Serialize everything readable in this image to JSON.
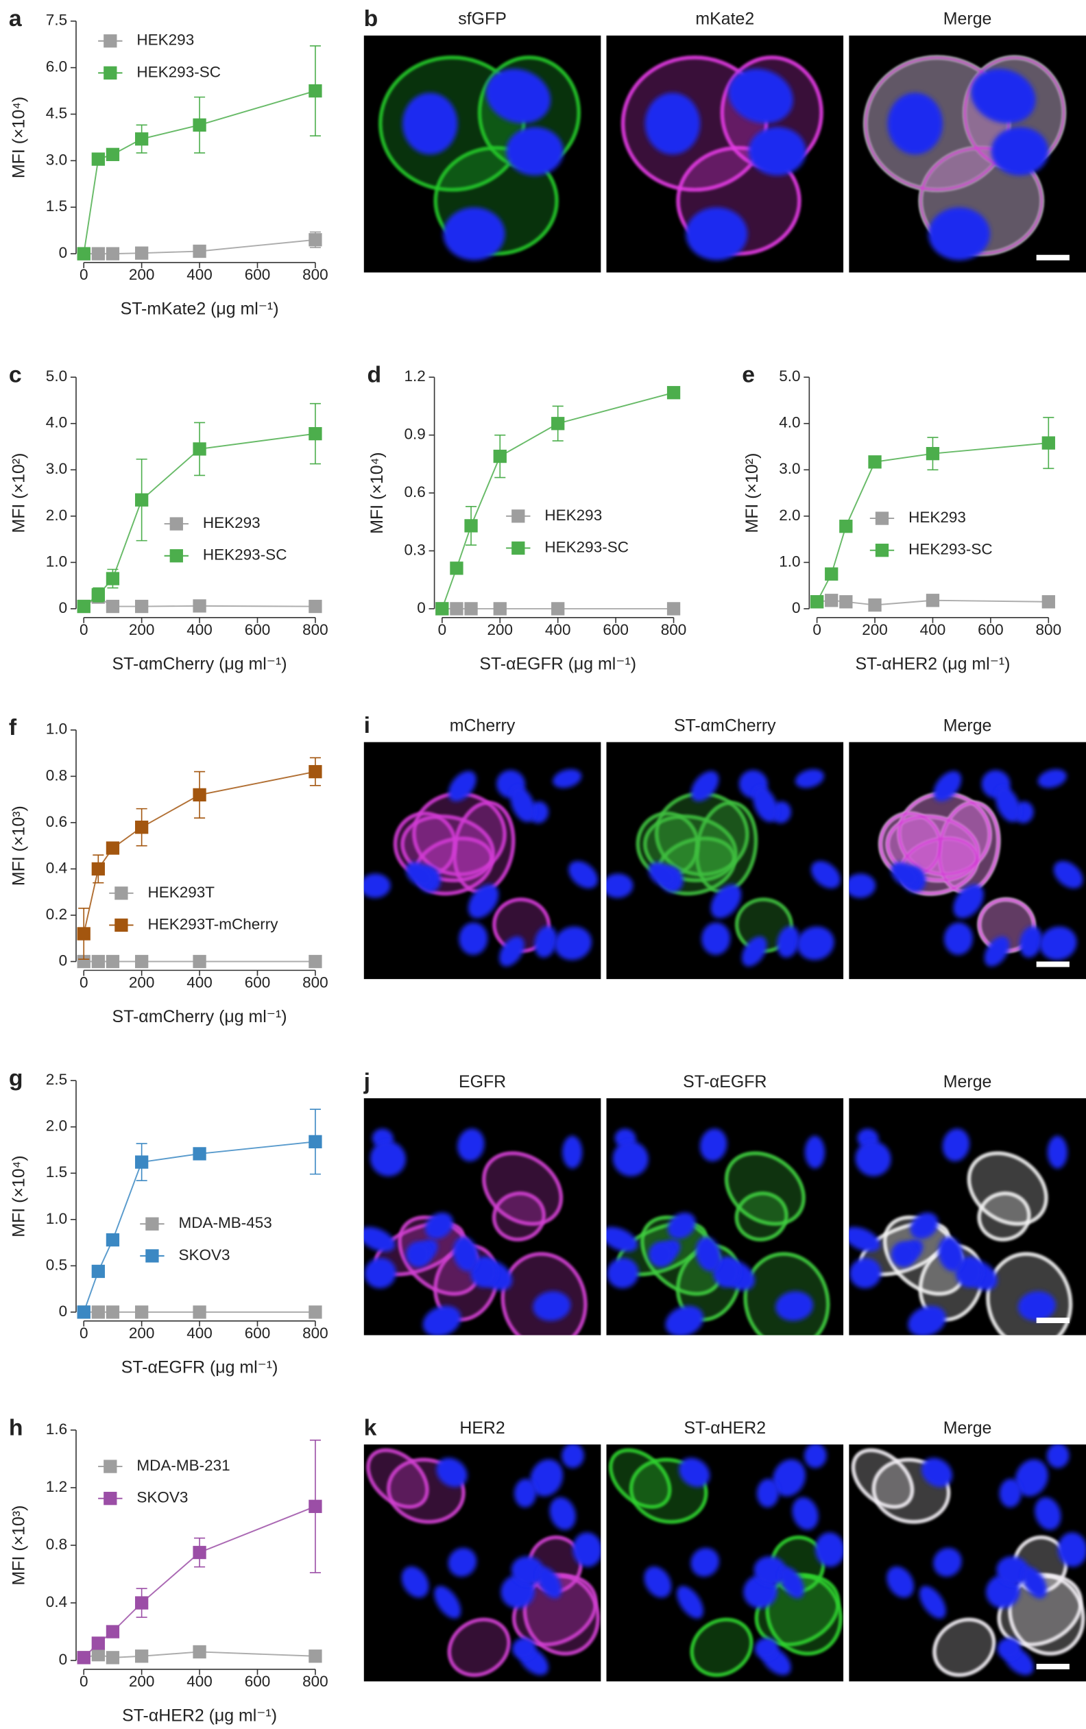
{
  "chart_data": [
    {
      "panel": "a",
      "type": "line",
      "x_label": "ST-mKate2 (μg ml⁻¹)",
      "y_label": "MFI (×10⁴)",
      "x": [
        0,
        50,
        100,
        200,
        400,
        800
      ],
      "xlim": [
        0,
        800
      ],
      "xticks": [
        0,
        200,
        400,
        600,
        800
      ],
      "ylim": [
        0,
        7.5
      ],
      "yticks": [
        0,
        1.5,
        {
          "value": 3,
          "label": "3.0"
        },
        4.5,
        {
          "value": 6,
          "label": "6.0"
        },
        7.5
      ],
      "series": [
        {
          "name": "HEK293",
          "color": "#9e9e9e",
          "values": [
            0,
            0,
            0,
            0.02,
            0.08,
            0.45
          ],
          "errors": [
            0,
            0,
            0,
            0,
            0.05,
            0.25
          ]
        },
        {
          "name": "HEK293-SC",
          "color": "#4cae4c",
          "values": [
            0,
            3.05,
            3.2,
            3.7,
            4.15,
            5.25
          ],
          "errors": [
            0,
            0.05,
            0.1,
            0.45,
            0.9,
            1.45
          ]
        }
      ]
    },
    {
      "panel": "c",
      "type": "line",
      "x_label": "ST-αmCherry (μg ml⁻¹)",
      "y_label": "MFI (×10²)",
      "x": [
        0,
        50,
        100,
        200,
        400,
        800
      ],
      "xlim": [
        0,
        800
      ],
      "xticks": [
        0,
        200,
        400,
        600,
        800
      ],
      "ylim": [
        0,
        5
      ],
      "yticks": [
        0,
        {
          "value": 1,
          "label": "1.0"
        },
        {
          "value": 2,
          "label": "2.0"
        },
        {
          "value": 3,
          "label": "3.0"
        },
        {
          "value": 4,
          "label": "4.0"
        },
        {
          "value": 5,
          "label": "5.0"
        }
      ],
      "series": [
        {
          "name": "HEK293",
          "color": "#9e9e9e",
          "values": [
            0.05,
            0.25,
            0.05,
            0.05,
            0.06,
            0.05
          ],
          "errors": [
            0.02,
            0.1,
            0.02,
            0.02,
            0.02,
            0.02
          ]
        },
        {
          "name": "HEK293-SC",
          "color": "#4cae4c",
          "values": [
            0.05,
            0.3,
            0.65,
            2.35,
            3.45,
            3.78
          ],
          "errors": [
            0.02,
            0.15,
            0.2,
            0.88,
            0.57,
            0.65
          ]
        }
      ]
    },
    {
      "panel": "d",
      "type": "line",
      "x_label": "ST-αEGFR (μg ml⁻¹)",
      "y_label": "MFI (×10⁴)",
      "x": [
        0,
        50,
        100,
        200,
        400,
        800
      ],
      "xlim": [
        0,
        800
      ],
      "xticks": [
        0,
        200,
        400,
        600,
        800
      ],
      "ylim": [
        0,
        1.2
      ],
      "yticks": [
        0,
        0.3,
        0.6,
        0.9,
        1.2
      ],
      "series": [
        {
          "name": "HEK293",
          "color": "#9e9e9e",
          "values": [
            0,
            0,
            0,
            0,
            0,
            0
          ],
          "errors": [
            0,
            0,
            0,
            0,
            0,
            0
          ]
        },
        {
          "name": "HEK293-SC",
          "color": "#4cae4c",
          "values": [
            0,
            0.21,
            0.43,
            0.79,
            0.96,
            1.12
          ],
          "errors": [
            0,
            0.02,
            0.1,
            0.11,
            0.09,
            0.02
          ]
        }
      ]
    },
    {
      "panel": "e",
      "type": "line",
      "x_label": "ST-αHER2 (μg ml⁻¹)",
      "y_label": "MFI (×10²)",
      "x": [
        0,
        50,
        100,
        200,
        400,
        800
      ],
      "xlim": [
        0,
        800
      ],
      "xticks": [
        0,
        200,
        400,
        600,
        800
      ],
      "ylim": [
        0,
        5
      ],
      "yticks": [
        0,
        {
          "value": 1,
          "label": "1.0"
        },
        {
          "value": 2,
          "label": "2.0"
        },
        {
          "value": 3,
          "label": "3.0"
        },
        {
          "value": 4,
          "label": "4.0"
        },
        {
          "value": 5,
          "label": "5.0"
        }
      ],
      "series": [
        {
          "name": "HEK293",
          "color": "#9e9e9e",
          "values": [
            0.15,
            0.18,
            0.15,
            0.08,
            0.18,
            0.15
          ],
          "errors": [
            0.02,
            0.02,
            0.02,
            0.02,
            0.02,
            0.02
          ]
        },
        {
          "name": "HEK293-SC",
          "color": "#4cae4c",
          "values": [
            0.15,
            0.75,
            1.78,
            3.17,
            3.35,
            3.58
          ],
          "errors": [
            0,
            0.05,
            0.05,
            0.05,
            0.35,
            0.55
          ]
        }
      ]
    },
    {
      "panel": "f",
      "type": "line",
      "x_label": "ST-αmCherry (μg ml⁻¹)",
      "y_label": "MFI (×10³)",
      "x": [
        0,
        50,
        100,
        200,
        400,
        800
      ],
      "xlim": [
        0,
        800
      ],
      "xticks": [
        0,
        200,
        400,
        600,
        800
      ],
      "ylim": [
        0,
        1
      ],
      "yticks": [
        0,
        0.2,
        0.4,
        0.6,
        0.8,
        {
          "value": 1,
          "label": "1.0"
        }
      ],
      "series": [
        {
          "name": "HEK293T",
          "color": "#9e9e9e",
          "values": [
            0,
            0,
            0,
            0,
            0,
            0
          ],
          "errors": [
            0,
            0,
            0,
            0,
            0,
            0
          ]
        },
        {
          "name": "HEK293T-mCherry",
          "color": "#a3560f",
          "values": [
            0.12,
            0.4,
            0.49,
            0.58,
            0.72,
            0.82
          ],
          "errors": [
            0.11,
            0.06,
            0.02,
            0.08,
            0.1,
            0.06
          ]
        }
      ]
    },
    {
      "panel": "g",
      "type": "line",
      "x_label": "ST-αEGFR (μg ml⁻¹)",
      "y_label": "MFI (×10⁴)",
      "x": [
        0,
        50,
        100,
        200,
        400,
        800
      ],
      "xlim": [
        0,
        800
      ],
      "xticks": [
        0,
        200,
        400,
        600,
        800
      ],
      "ylim": [
        0,
        2.5
      ],
      "yticks": [
        0,
        0.5,
        {
          "value": 1,
          "label": "1.0"
        },
        1.5,
        {
          "value": 2,
          "label": "2.0"
        },
        2.5
      ],
      "series": [
        {
          "name": "MDA-MB-453",
          "color": "#9e9e9e",
          "values": [
            0,
            0,
            0,
            0,
            0,
            0
          ],
          "errors": [
            0,
            0,
            0,
            0,
            0,
            0
          ]
        },
        {
          "name": "SKOV3",
          "color": "#3b88c3",
          "values": [
            0,
            0.44,
            0.78,
            1.62,
            1.71,
            1.84
          ],
          "errors": [
            0,
            0.02,
            0.03,
            0.2,
            0.06,
            0.35
          ]
        }
      ]
    },
    {
      "panel": "h",
      "type": "line",
      "x_label": "ST-αHER2 (μg ml⁻¹)",
      "y_label": "MFI (×10³)",
      "x": [
        0,
        50,
        100,
        200,
        400,
        800
      ],
      "xlim": [
        0,
        800
      ],
      "xticks": [
        0,
        200,
        400,
        600,
        800
      ],
      "ylim": [
        0,
        1.6
      ],
      "yticks": [
        0,
        0.4,
        0.8,
        1.2,
        1.6
      ],
      "series": [
        {
          "name": "MDA-MB-231",
          "color": "#9e9e9e",
          "values": [
            0.02,
            0.04,
            0.02,
            0.03,
            0.06,
            0.03
          ],
          "errors": [
            0.01,
            0.01,
            0.01,
            0.01,
            0.01,
            0.01
          ]
        },
        {
          "name": "SKOV3",
          "color": "#9b4ea6",
          "values": [
            0.02,
            0.12,
            0.2,
            0.4,
            0.75,
            1.07
          ],
          "errors": [
            0.02,
            0.02,
            0.02,
            0.1,
            0.1,
            0.46
          ]
        }
      ]
    }
  ],
  "image_panels": [
    {
      "panel": "b",
      "titles": [
        "sfGFP",
        "mKate2",
        "Merge"
      ]
    },
    {
      "panel": "i",
      "titles": [
        "mCherry",
        "ST-αmCherry",
        "Merge"
      ]
    },
    {
      "panel": "j",
      "titles": [
        "EGFR",
        "ST-αEGFR",
        "Merge"
      ]
    },
    {
      "panel": "k",
      "titles": [
        "HER2",
        "ST-αHER2",
        "Merge"
      ]
    }
  ]
}
